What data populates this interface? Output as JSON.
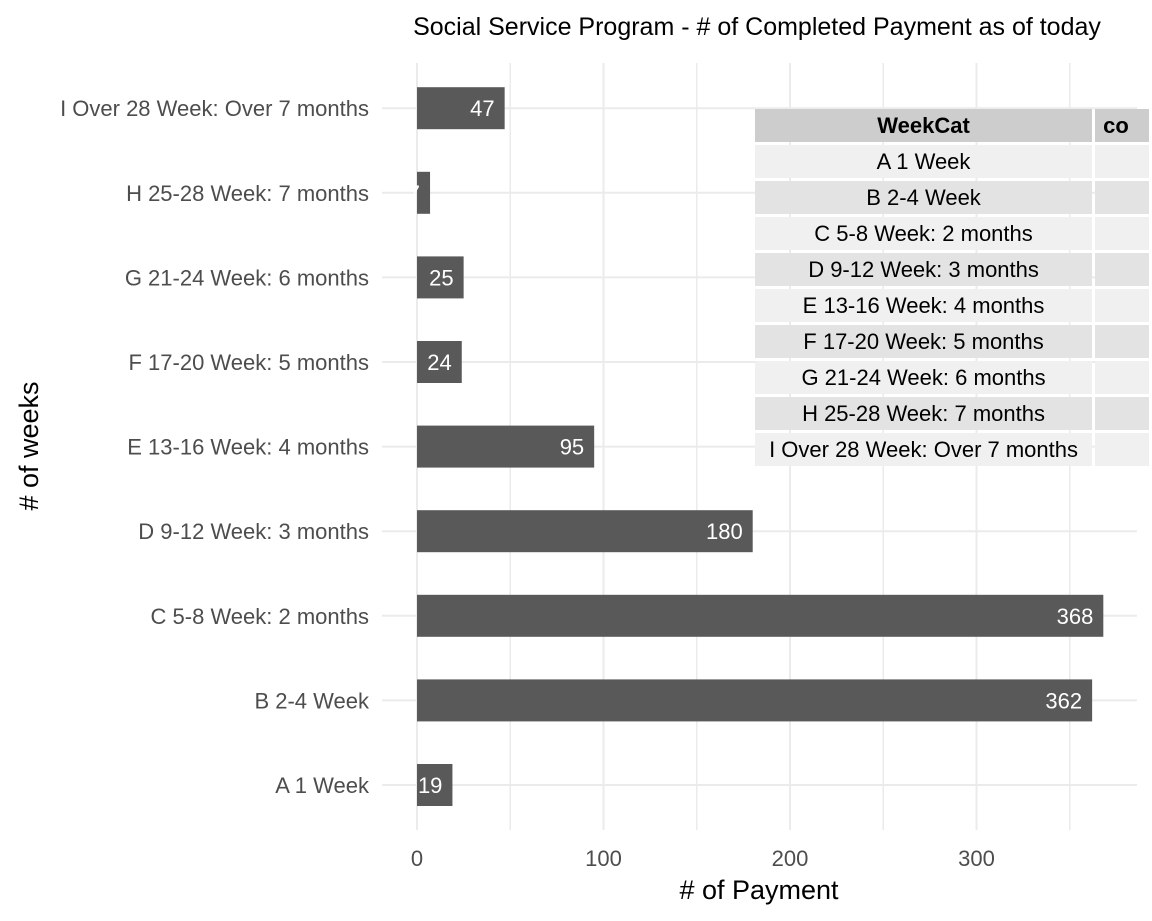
{
  "chart_data": {
    "type": "bar",
    "orientation": "horizontal",
    "title": "Social Service Program - # of Completed Payment as of today",
    "xlabel": "# of Payment",
    "ylabel": "# of weeks",
    "categories": [
      "A 1 Week",
      "B 2-4 Week",
      "C 5-8 Week: 2 months",
      "D 9-12 Week: 3 months",
      "E 13-16 Week: 4 months",
      "F 17-20 Week: 5 months",
      "G 21-24 Week: 6 months",
      "H 25-28 Week: 7 months",
      "I Over 28 Week: Over 7 months"
    ],
    "values": [
      19,
      362,
      368,
      180,
      95,
      24,
      25,
      7,
      47
    ],
    "data_labels": [
      "19",
      "362",
      "368",
      "180",
      "95",
      "24",
      "25",
      "7",
      "47"
    ],
    "xlim": [
      0,
      385
    ],
    "x_ticks": [
      0,
      100,
      200,
      300
    ],
    "x_tick_labels": [
      "0",
      "100",
      "200",
      "300"
    ],
    "grid": true,
    "bar_color": "#595959",
    "grid_color": "#ebebeb",
    "label_color": "#ffffff"
  },
  "table": {
    "headers": [
      "WeekCat",
      "co"
    ],
    "rows": [
      "A 1 Week",
      "B 2-4 Week",
      "C 5-8 Week: 2 months",
      "D 9-12 Week: 3 months",
      "E 13-16 Week: 4 months",
      "F 17-20 Week: 5 months",
      "G 21-24 Week: 6 months",
      "H 25-28 Week: 7 months",
      "I Over 28 Week: Over 7 months"
    ]
  }
}
